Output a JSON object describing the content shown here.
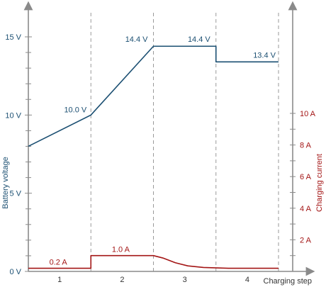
{
  "chart_data": {
    "type": "line",
    "xlabel": "Charging step",
    "ylabel_left": "Battery voltage",
    "ylabel_right": "Charging current",
    "x_ticks": [
      "1",
      "2",
      "3",
      "4"
    ],
    "left_ticks": [
      "0 V",
      "5 V",
      "10 V",
      "15 V"
    ],
    "right_ticks": [
      "2 A",
      "4 A",
      "6 A",
      "8 A",
      "10 A"
    ],
    "ylim_left": [
      0,
      15
    ],
    "ylim_right": [
      0,
      10
    ],
    "step_boundaries": [
      1,
      2,
      3,
      4
    ],
    "xlim": [
      0,
      4
    ],
    "series": [
      {
        "name": "Battery voltage",
        "axis": "left",
        "color": "#1b4f72",
        "points": [
          [
            0,
            8.0
          ],
          [
            1,
            10.0
          ],
          [
            2,
            14.4
          ],
          [
            3,
            14.4
          ],
          [
            3,
            13.4
          ],
          [
            4,
            13.4
          ]
        ]
      },
      {
        "name": "Charging current",
        "axis": "right",
        "color": "#a31515",
        "points": [
          [
            0,
            0.2
          ],
          [
            1,
            0.2
          ],
          [
            1,
            1.0
          ],
          [
            2,
            1.0
          ],
          [
            2.15,
            0.85
          ],
          [
            2.35,
            0.55
          ],
          [
            2.55,
            0.35
          ],
          [
            2.8,
            0.25
          ],
          [
            3.2,
            0.2
          ],
          [
            4,
            0.2
          ]
        ]
      }
    ],
    "voltage_labels": [
      {
        "text": "10.0 V",
        "x": 1,
        "y": 10.0
      },
      {
        "text": "14.4 V",
        "x": 2,
        "y": 14.4
      },
      {
        "text": "14.4 V",
        "x": 3,
        "y": 14.4
      },
      {
        "text": "13.4 V",
        "x": 4,
        "y": 13.4
      }
    ],
    "current_labels": [
      {
        "text": "0.2 A",
        "x": 0.5,
        "y": 0.2
      },
      {
        "text": "1.0 A",
        "x": 1.5,
        "y": 1.0
      }
    ]
  }
}
